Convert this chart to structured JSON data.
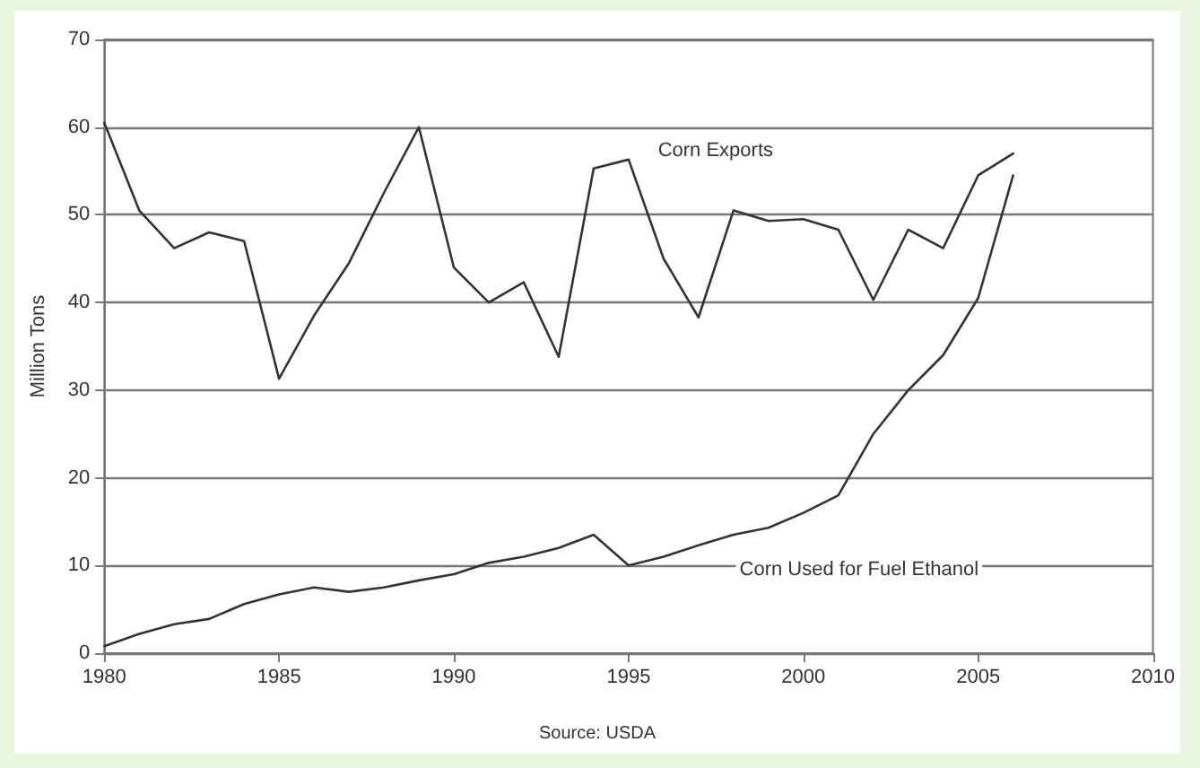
{
  "chart_data": {
    "type": "line",
    "ylabel": "Million Tons",
    "annotations": [
      "Source: USDA"
    ],
    "x": [
      1980,
      1981,
      1982,
      1983,
      1984,
      1985,
      1986,
      1987,
      1988,
      1989,
      1990,
      1991,
      1992,
      1993,
      1994,
      1995,
      1996,
      1997,
      1998,
      1999,
      2000,
      2001,
      2002,
      2003,
      2004,
      2005,
      2006
    ],
    "series": [
      {
        "name": "Corn Exports",
        "color": "#333333",
        "values": [
          60.5,
          50.5,
          46.2,
          48,
          47,
          31.3,
          38.5,
          44.5,
          52.5,
          60,
          44,
          40,
          42.3,
          33.8,
          55.3,
          56.3,
          45,
          38.3,
          50.5,
          49.3,
          49.5,
          48.3,
          40.3,
          48.3,
          46.2,
          54.5,
          57
        ]
      },
      {
        "name": "Corn Used for Fuel Ethanol",
        "color": "#333333",
        "values": [
          0.8,
          2.2,
          3.3,
          3.9,
          5.6,
          6.7,
          7.5,
          7,
          7.5,
          8.3,
          9,
          10.3,
          11,
          12,
          13.5,
          10,
          11,
          12.3,
          13.5,
          14.3,
          16,
          18,
          25,
          30,
          34,
          40.5,
          54.5
        ]
      }
    ],
    "xlim": [
      1980,
      2010
    ],
    "xticks": [
      1980,
      1985,
      1990,
      1995,
      2000,
      2005,
      2010
    ],
    "ylim": [
      0,
      70
    ],
    "yticks": [
      0,
      10,
      20,
      30,
      40,
      50,
      60,
      70
    ],
    "grid": "y",
    "legend": false,
    "marker": "none",
    "line_style": "solid"
  }
}
